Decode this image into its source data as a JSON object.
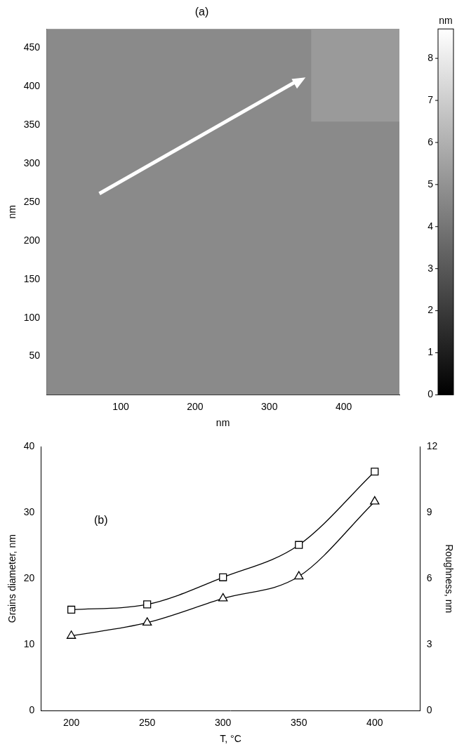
{
  "chart_data": [
    {
      "type": "image",
      "title": "(a)",
      "x_label": "nm",
      "y_label": "nm",
      "xlim": [
        0,
        475
      ],
      "xticks": [
        100,
        200,
        300,
        400
      ],
      "ylim": [
        0,
        475
      ],
      "yticks": [
        50,
        100,
        150,
        200,
        250,
        300,
        350,
        400,
        450
      ],
      "grid": false,
      "colorbar": {
        "label": "nm",
        "range": [
          0,
          8.7
        ],
        "ticks": [
          0,
          1,
          2,
          3,
          4,
          5,
          6,
          7,
          8
        ]
      }
    },
    {
      "type": "line",
      "title": "(b)",
      "x_label": "T, °C",
      "y_label": "Grains diameter, nm",
      "y2_label": "Roughness, nm",
      "x": [
        200,
        250,
        300,
        350,
        400
      ],
      "xlim": [
        180,
        430
      ],
      "xticks": [
        200,
        250,
        300,
        350,
        400
      ],
      "ylim": [
        0,
        40
      ],
      "yticks": [
        0,
        10,
        20,
        30,
        40
      ],
      "y2lim": [
        0,
        12
      ],
      "y2ticks": [
        0,
        3,
        6,
        9,
        12
      ],
      "grid": false,
      "series": [
        {
          "color": "#000000",
          "marker": "square",
          "line_style": "solid",
          "values": [
            15.3,
            16.1,
            20.2,
            25.1,
            36.2
          ]
        },
        {
          "color": "#000000",
          "marker": "triangle",
          "line_style": "solid",
          "axis": "y2",
          "values": [
            3.4,
            4.0,
            5.1,
            6.1,
            9.5
          ]
        }
      ]
    }
  ]
}
